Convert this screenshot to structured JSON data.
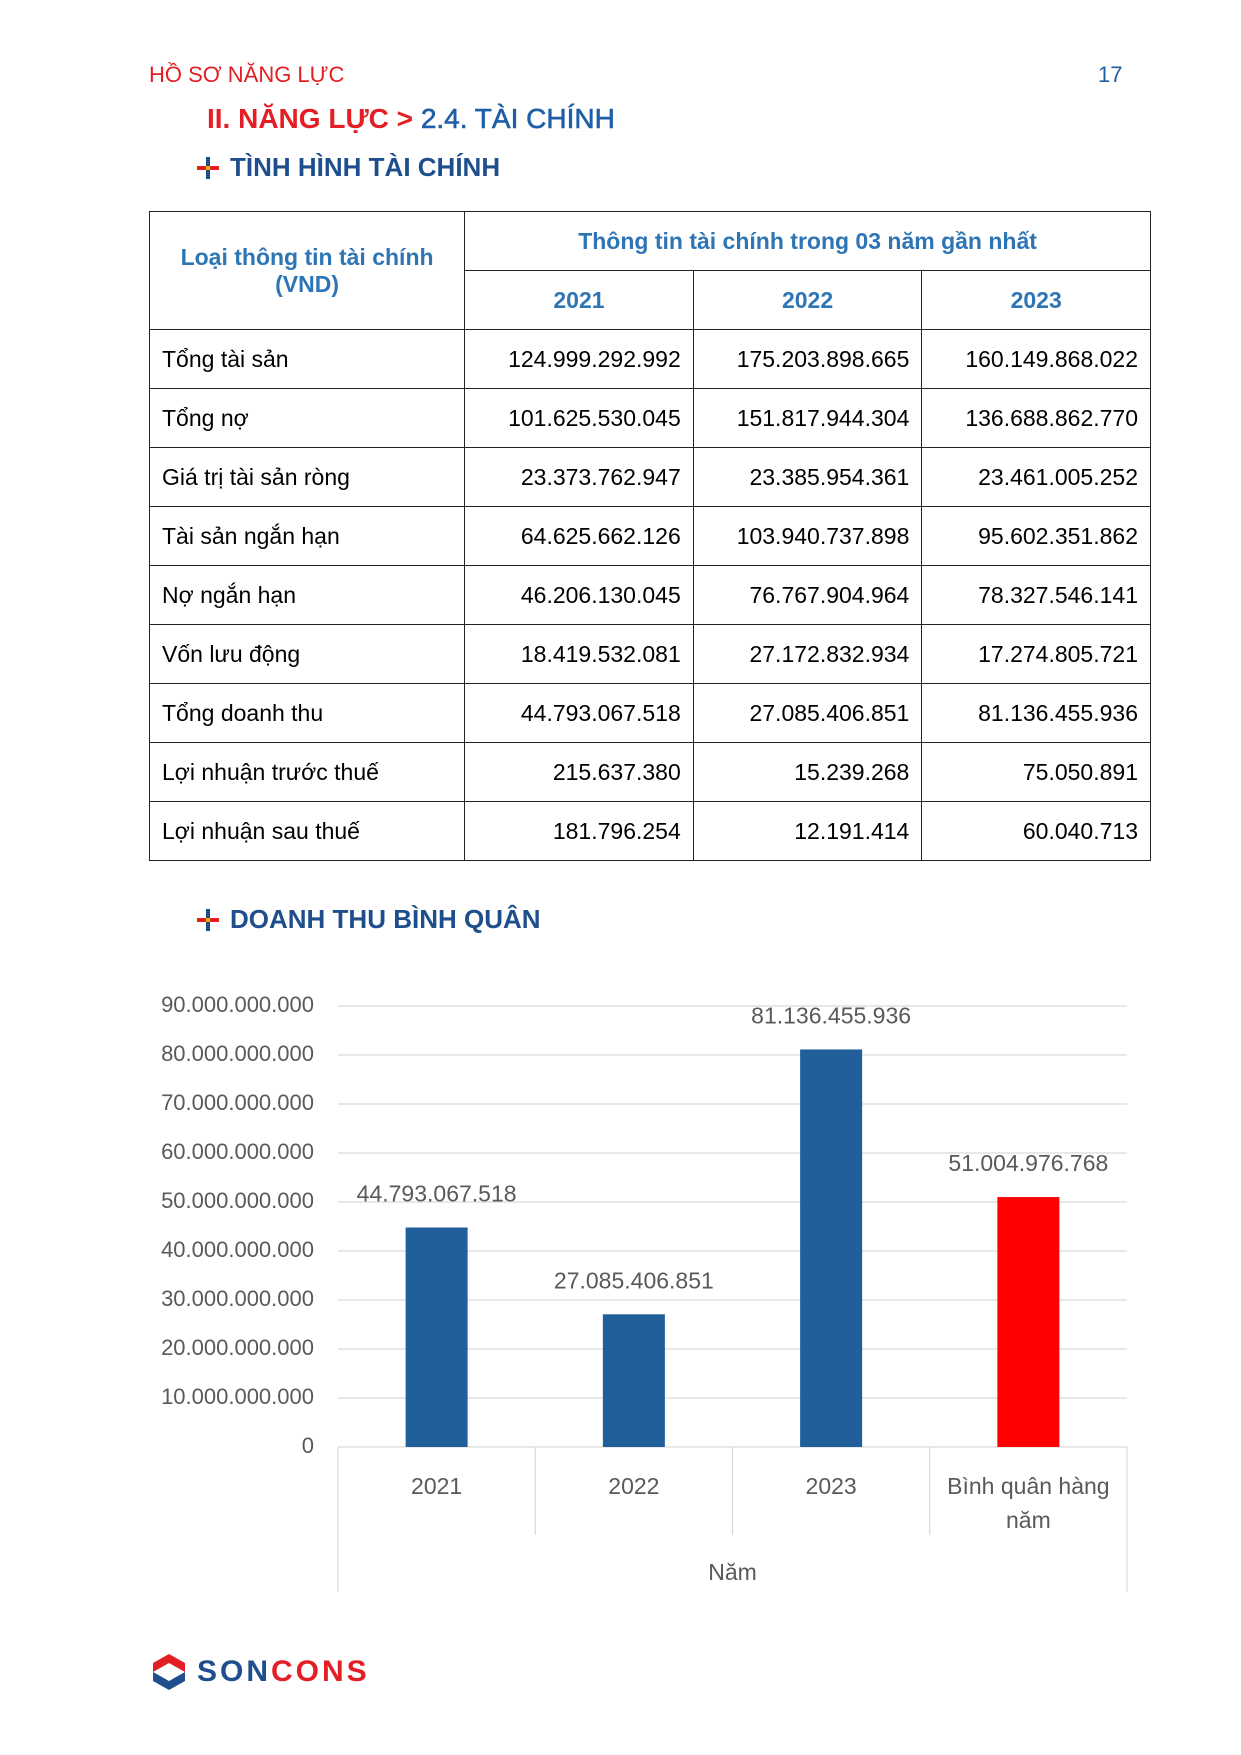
{
  "header": {
    "title": "HỒ SƠ NĂNG LỰC",
    "page": "17"
  },
  "heading": {
    "prefix": "II. NĂNG LỰC >",
    "text": "2.4. TÀI CHÍNH"
  },
  "sections": [
    "TÌNH HÌNH TÀI CHÍNH",
    "DOANH THU BÌNH QUÂN"
  ],
  "table": {
    "corner": "Loại thông tin tài chính (VND)",
    "group": "Thông tin tài chính trong 03 năm gần nhất",
    "years": [
      "2021",
      "2022",
      "2023"
    ],
    "rows": [
      [
        "Tổng tài sản",
        "124.999.292.992",
        "175.203.898.665",
        "160.149.868.022"
      ],
      [
        "Tổng nợ",
        "101.625.530.045",
        "151.817.944.304",
        "136.688.862.770"
      ],
      [
        "Giá trị tài sản ròng",
        "23.373.762.947",
        "23.385.954.361",
        "23.461.005.252"
      ],
      [
        "Tài sản ngắn hạn",
        "64.625.662.126",
        "103.940.737.898",
        "95.602.351.862"
      ],
      [
        "Nợ ngắn hạn",
        "46.206.130.045",
        "76.767.904.964",
        "78.327.546.141"
      ],
      [
        "Vốn lưu động",
        "18.419.532.081",
        "27.172.832.934",
        "17.274.805.721"
      ],
      [
        "Tổng doanh thu",
        "44.793.067.518",
        "27.085.406.851",
        "81.136.455.936"
      ],
      [
        "Lợi nhuận trước thuế",
        "215.637.380",
        "15.239.268",
        "75.050.891"
      ],
      [
        "Lợi nhuận sau thuế",
        "181.796.254",
        "12.191.414",
        "60.040.713"
      ]
    ]
  },
  "chart_data": {
    "type": "bar",
    "x_label": "Năm",
    "categories": [
      "2021",
      "2022",
      "2023",
      "Bình quân hàng năm"
    ],
    "values": [
      44793067518,
      27085406851,
      81136455936,
      51004976768
    ],
    "value_labels": [
      "44.793.067.518",
      "27.085.406.851",
      "81.136.455.936",
      "51.004.976.768"
    ],
    "colors": [
      "#215f9a",
      "#215f9a",
      "#215f9a",
      "#ff0000"
    ],
    "ylim": [
      0,
      90000000000
    ],
    "yticks": [
      0,
      {
        "value": 10000000000,
        "label": "10.000.000.000"
      },
      {
        "value": 20000000000,
        "label": "20.000.000.000"
      },
      {
        "value": 30000000000,
        "label": "30.000.000.000"
      },
      {
        "value": 40000000000,
        "label": "40.000.000.000"
      },
      {
        "value": 50000000000,
        "label": "50.000.000.000"
      },
      {
        "value": 60000000000,
        "label": "60.000.000.000"
      },
      {
        "value": 70000000000,
        "label": "70.000.000.000"
      },
      {
        "value": 80000000000,
        "label": "80.000.000.000"
      },
      {
        "value": 90000000000,
        "label": "90.000.000.000"
      }
    ],
    "grid": true
  },
  "logo": {
    "parts": [
      "SON",
      "CONS"
    ]
  }
}
